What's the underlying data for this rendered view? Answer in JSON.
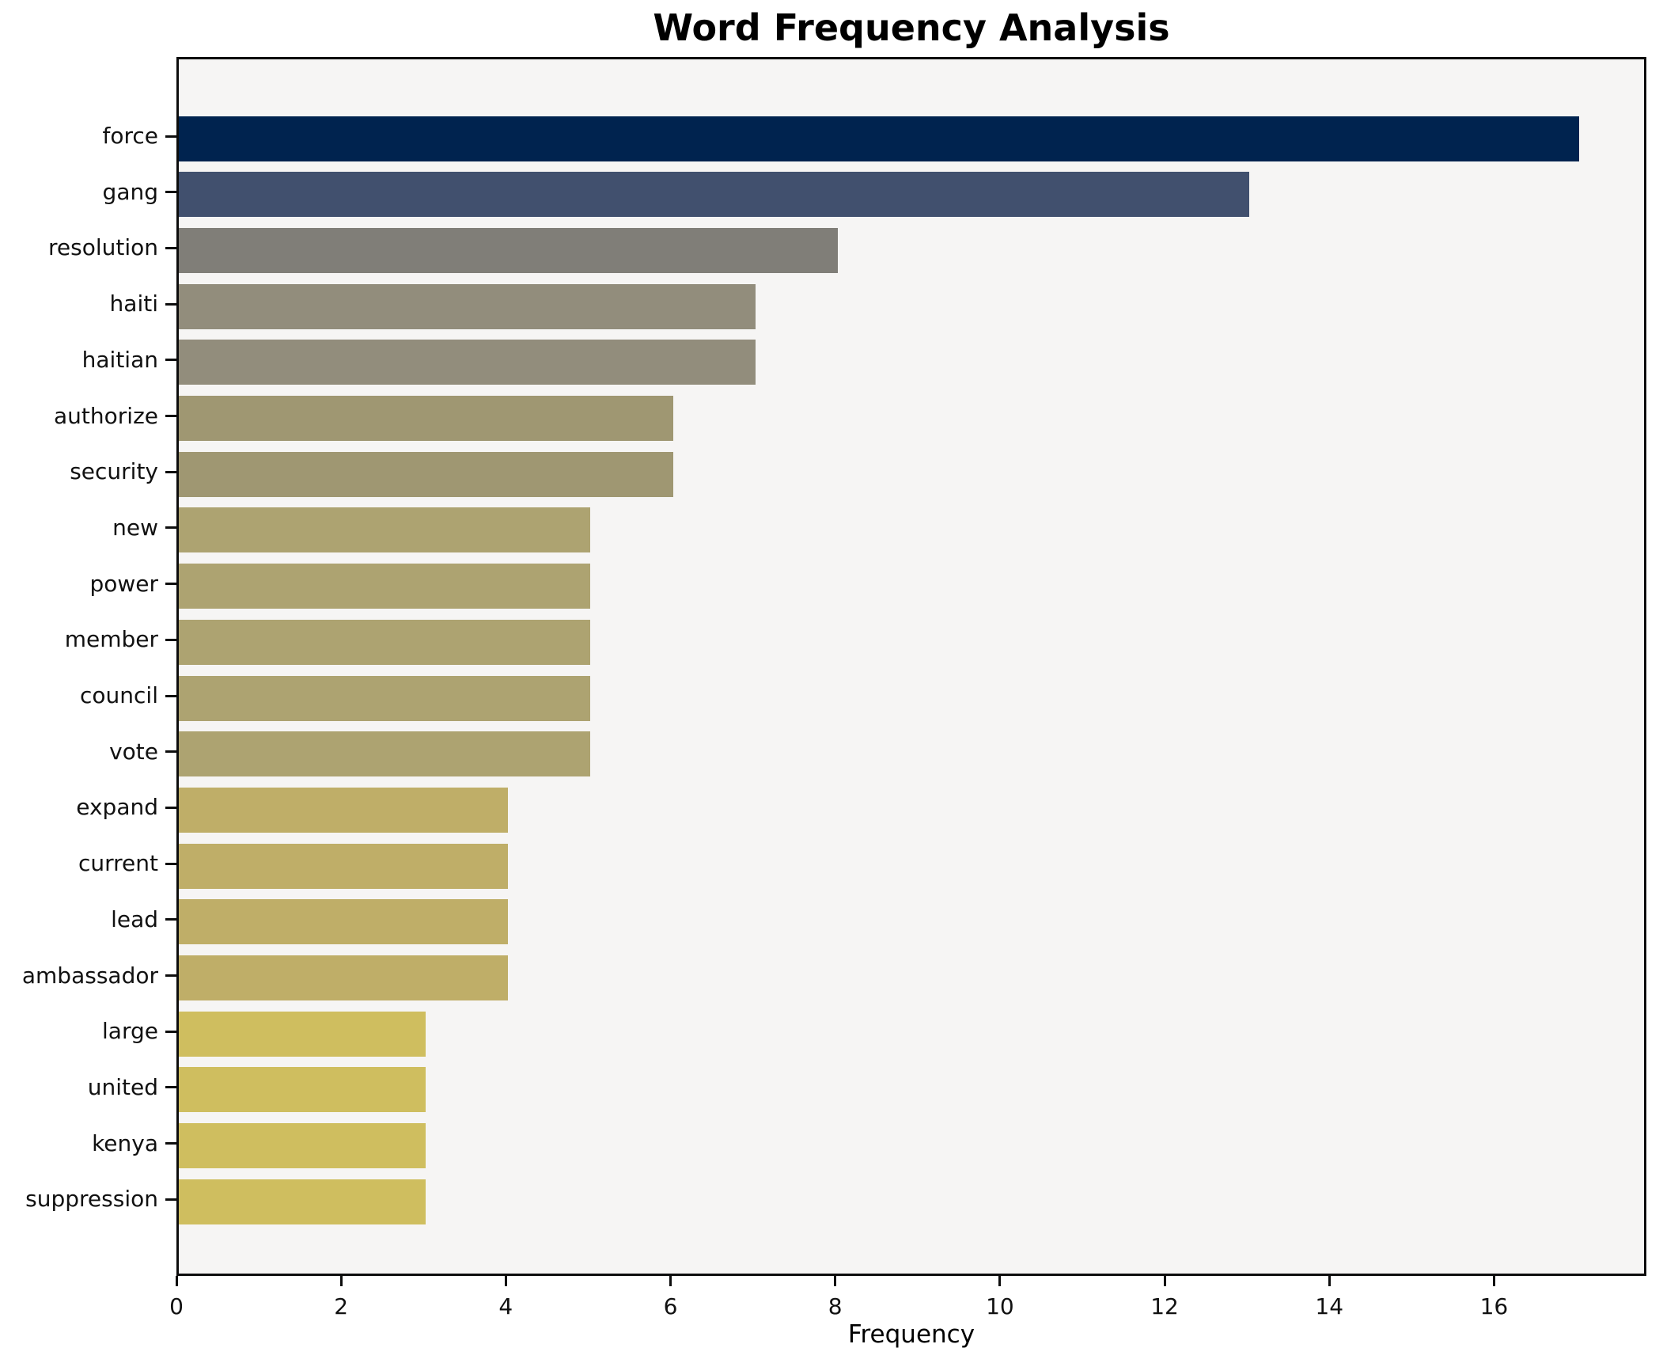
{
  "colors": {
    "figure_background": "#ffffff",
    "plot_background": "#f6f5f4",
    "axis_spine": "#0d0d0d",
    "text": "#000000"
  },
  "chart_data": {
    "type": "bar",
    "orientation": "horizontal",
    "title": "Word Frequency Analysis",
    "xlabel": "Frequency",
    "ylabel": "",
    "grid": false,
    "legend": null,
    "xlim": [
      0,
      17.85
    ],
    "xticks": [
      0,
      2,
      4,
      6,
      8,
      10,
      12,
      14,
      16
    ],
    "categories": [
      "force",
      "gang",
      "resolution",
      "haiti",
      "haitian",
      "authorize",
      "security",
      "new",
      "power",
      "member",
      "council",
      "vote",
      "expand",
      "current",
      "lead",
      "ambassador",
      "large",
      "united",
      "kenya",
      "suppression"
    ],
    "values": [
      17,
      13,
      8,
      7,
      7,
      6,
      6,
      5,
      5,
      5,
      5,
      5,
      4,
      4,
      4,
      4,
      3,
      3,
      3,
      3
    ],
    "bar_colors": [
      "#00234f",
      "#41506e",
      "#807e78",
      "#928d7c",
      "#928d7c",
      "#9f9772",
      "#9f9772",
      "#ada371",
      "#ada371",
      "#ada371",
      "#ada371",
      "#ada371",
      "#bfae68",
      "#bfae68",
      "#bfae68",
      "#bfae68",
      "#cfbe5f",
      "#cfbe5f",
      "#cfbe5f",
      "#cfbe5f"
    ]
  }
}
